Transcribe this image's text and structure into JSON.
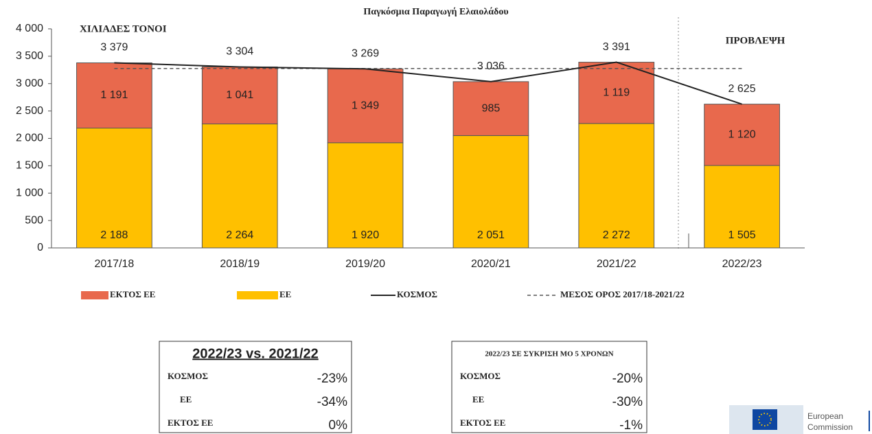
{
  "chart_data": {
    "type": "bar",
    "stacked": true,
    "title": "Παγκόσμια Παραγωγή Ελαιολάδου",
    "y_label": "ΧΙΛΙΑΔΕΣ ΤΟΝΟΙ",
    "annotation": "ΠΡΟΒΛΕΨΗ",
    "categories": [
      "2017/18",
      "2018/19",
      "2019/20",
      "2020/21",
      "2021/22",
      "2022/23"
    ],
    "series": [
      {
        "name": "ΕΚΤΟΣ ΕΕ",
        "color": "#e8694d",
        "stack_order": 1,
        "values": [
          1191,
          1041,
          1349,
          985,
          1119,
          1120
        ],
        "value_labels": [
          "1 191",
          "1 041",
          "1 349",
          "985",
          "1 119",
          "1 120"
        ]
      },
      {
        "name": "ΕΕ",
        "color": "#ffc000",
        "stack_order": 0,
        "values": [
          2188,
          2264,
          1920,
          2051,
          2272,
          1505
        ],
        "value_labels": [
          "2 188",
          "2 264",
          "1 920",
          "2 051",
          "2 272",
          "1 505"
        ]
      },
      {
        "name": "ΚΟΣΜΟΣ",
        "color": "#222222",
        "kind": "line",
        "values": [
          3379,
          3304,
          3269,
          3036,
          3391,
          2625
        ],
        "value_labels": [
          "3 379",
          "3 304",
          "3 269",
          "3 036",
          "3 391",
          "2 625"
        ]
      }
    ],
    "average": {
      "name": "ΜΕΣΟΣ ΟΡΟΣ 2017/18-2021/22",
      "value": 3276,
      "color": "#555555"
    },
    "ylim": [
      0,
      4000
    ],
    "yticks": [
      0,
      {
        "value": 500,
        "label": "500"
      },
      {
        "value": 1000,
        "label": "1 000"
      },
      {
        "value": 1500,
        "label": "1 500"
      },
      {
        "value": 2000,
        "label": "2 000"
      },
      {
        "value": 2500,
        "label": "2 500"
      },
      {
        "value": 3000,
        "label": "3 000"
      },
      {
        "value": 3500,
        "label": "3 500"
      },
      {
        "value": 4000,
        "label": "4 000"
      }
    ],
    "grid": false
  },
  "tables": [
    {
      "title": "2022/23 vs. 2021/22",
      "rows": [
        [
          "ΚΟΣΜΟΣ",
          "-23%"
        ],
        [
          "ΕΕ",
          "-34%"
        ],
        [
          "ΕΚΤΟΣ ΕΕ",
          "0%"
        ]
      ]
    },
    {
      "title": "2022/23 ΣΕ ΣΥΚΡΙΣΗ ΜΟ 5 ΧΡΟΝΩΝ",
      "rows": [
        [
          "ΚΟΣΜΟΣ",
          "-20%"
        ],
        [
          "ΕΕ",
          "-30%"
        ],
        [
          "ΕΚΤΟΣ ΕΕ",
          "-1%"
        ]
      ]
    }
  ],
  "logo": {
    "line1": "European",
    "line2": "Commission"
  }
}
